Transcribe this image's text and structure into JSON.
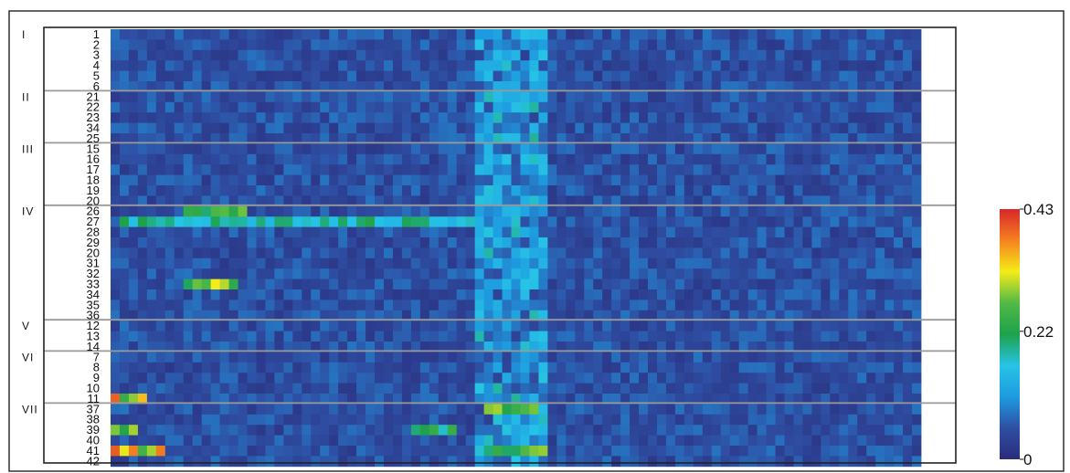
{
  "chart_data": {
    "type": "heatmap",
    "title": "",
    "xlabel": "",
    "ylabel": "",
    "groups": [
      {
        "label": "I",
        "rows": [
          "1",
          "2",
          "3",
          "4",
          "5",
          "6"
        ]
      },
      {
        "label": "II",
        "rows": [
          "21",
          "22",
          "23",
          "34",
          "25"
        ]
      },
      {
        "label": "III",
        "rows": [
          "15",
          "16",
          "17",
          "18",
          "19",
          "20"
        ]
      },
      {
        "label": "IV",
        "rows": [
          "26",
          "27",
          "28",
          "29",
          "20",
          "31",
          "32",
          "33",
          "34",
          "35",
          "36"
        ]
      },
      {
        "label": "V",
        "rows": [
          "12",
          "13",
          "14"
        ]
      },
      {
        "label": "VI",
        "rows": [
          "7",
          "8",
          "9",
          "10",
          "11"
        ]
      },
      {
        "label": "VII",
        "rows": [
          "37",
          "38",
          "39",
          "40",
          "41",
          "42"
        ]
      }
    ],
    "n_columns": 89,
    "colorbar": {
      "min": 0,
      "max": 0.43,
      "ticks": [
        {
          "value": 0.43,
          "label": "0.43"
        },
        {
          "value": 0.22,
          "label": "0.22"
        },
        {
          "value": 0,
          "label": "0"
        }
      ],
      "colormap": [
        "#2b2c7c",
        "#2e4fa3",
        "#1e9be0",
        "#26c4e6",
        "#1fa14b",
        "#52b947",
        "#f5ec18",
        "#f58220",
        "#d7262b"
      ]
    },
    "hotspots": [
      {
        "row": "26",
        "col_start": 8,
        "col_end": 14,
        "value": 0.3
      },
      {
        "row": "27",
        "col_start": 1,
        "col_end": 40,
        "value": 0.22
      },
      {
        "row": "33",
        "col_start": 8,
        "col_end": 13,
        "value": 0.33
      },
      {
        "row": "11",
        "col_start": 0,
        "col_end": 3,
        "value": 0.4
      },
      {
        "row": "41",
        "col_start": 0,
        "col_end": 5,
        "value": 0.4
      },
      {
        "row": "39",
        "col_start": 0,
        "col_end": 2,
        "value": 0.3
      },
      {
        "row": "37",
        "col_start": 41,
        "col_end": 46,
        "value": 0.3
      },
      {
        "row": "41",
        "col_start": 42,
        "col_end": 47,
        "value": 0.3
      },
      {
        "row": "39",
        "col_start": 33,
        "col_end": 37,
        "value": 0.28
      }
    ],
    "background_level": 0.02
  }
}
